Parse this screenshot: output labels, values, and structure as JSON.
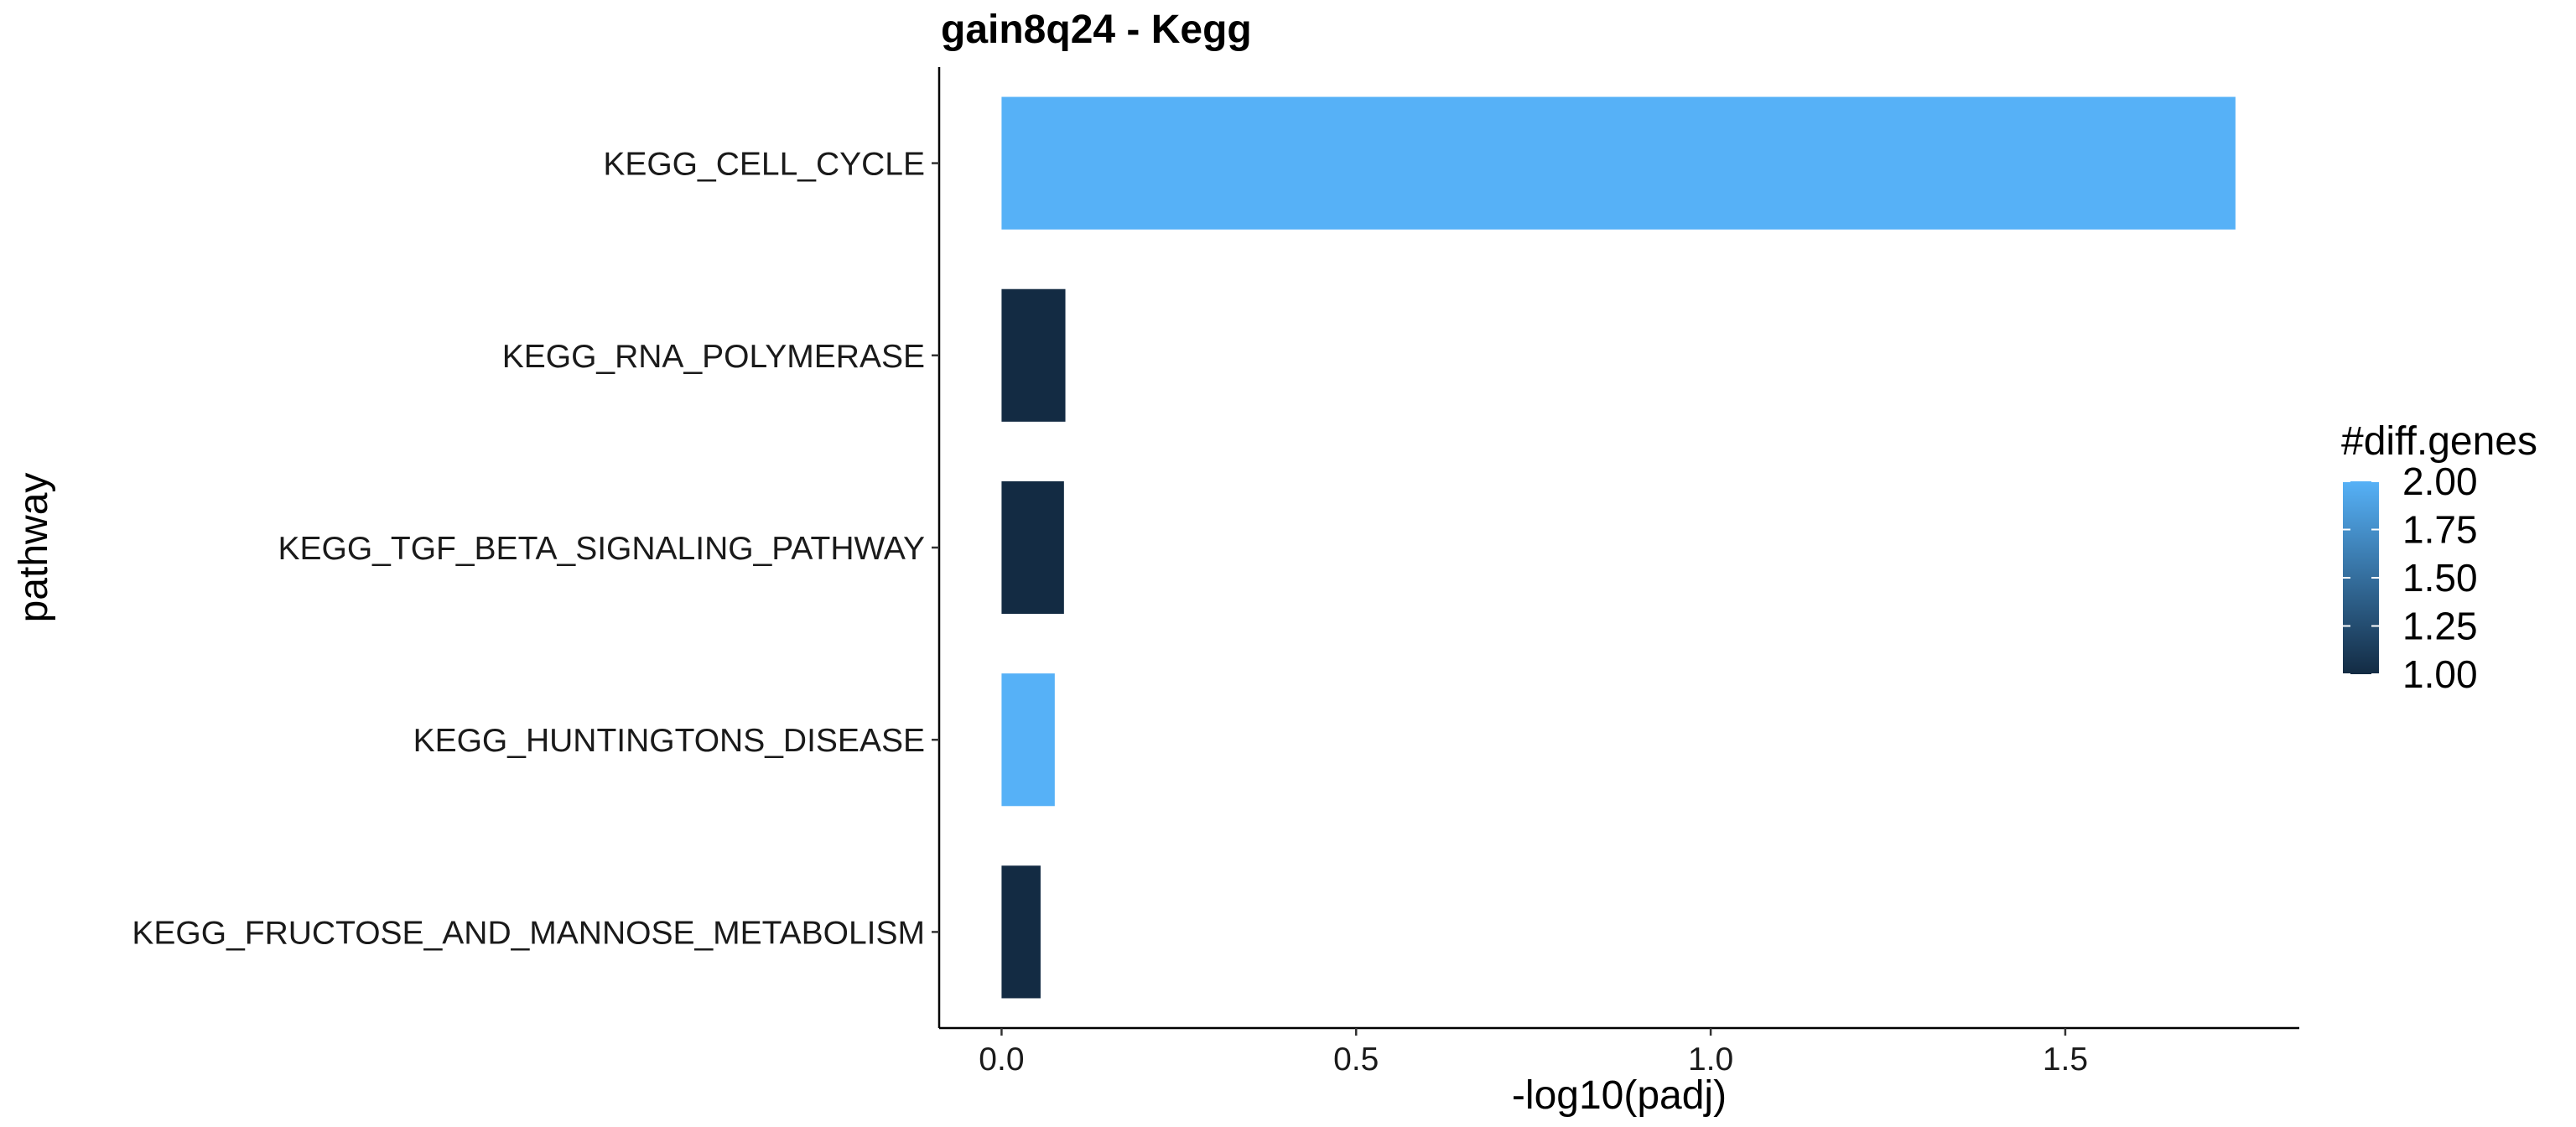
{
  "chart_data": {
    "type": "bar",
    "orientation": "horizontal",
    "title": "gain8q24 - Kegg",
    "xlabel": "-log10(padj)",
    "ylabel": "pathway",
    "categories": [
      "KEGG_CELL_CYCLE",
      "KEGG_RNA_POLYMERASE",
      "KEGG_TGF_BETA_SIGNALING_PATHWAY",
      "KEGG_HUNTINGTONS_DISEASE",
      "KEGG_FRUCTOSE_AND_MANNOSE_METABOLISM"
    ],
    "values": [
      1.74,
      0.09,
      0.088,
      0.075,
      0.055
    ],
    "diff_genes": [
      2,
      1,
      1,
      2,
      1
    ],
    "xlim": [
      -0.088,
      1.83
    ],
    "xticks": [
      0.0,
      0.5,
      1.0,
      1.5
    ],
    "xtick_labels": [
      "0.0",
      "0.5",
      "1.0",
      "1.5"
    ],
    "grid": false,
    "legend": {
      "title": "#diff.genes",
      "position": "right",
      "range": [
        1.0,
        2.0
      ],
      "ticks": [
        "2.00",
        "1.75",
        "1.50",
        "1.25",
        "1.00"
      ],
      "tick_values": [
        2.0,
        1.75,
        1.5,
        1.25,
        1.0
      ],
      "color_low": "#132B43",
      "color_high": "#56B1F7"
    }
  }
}
